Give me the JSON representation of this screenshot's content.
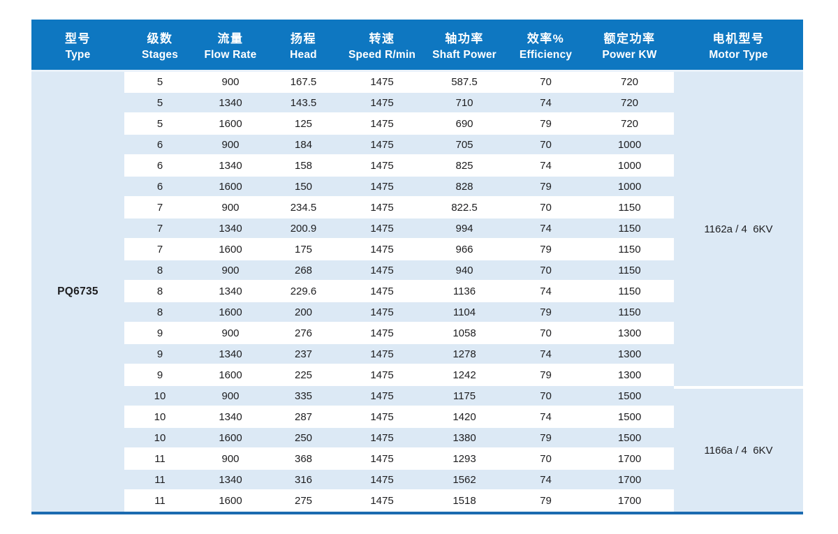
{
  "colors": {
    "header_bg": "#0e77c1",
    "stripe_bg": "#dce9f5",
    "bottom_rule": "#1c6bb0",
    "header_text": "#ffffff",
    "body_text": "#1d1d1f"
  },
  "table": {
    "columns": [
      {
        "zh": "型号",
        "en": "Type"
      },
      {
        "zh": "级数",
        "en": "Stages"
      },
      {
        "zh": "流量",
        "en": "Flow Rate"
      },
      {
        "zh": "扬程",
        "en": "Head"
      },
      {
        "zh": "转速",
        "en": "Speed R/min"
      },
      {
        "zh": "轴功率",
        "en": "Shaft Power"
      },
      {
        "zh": "效率%",
        "en": "Efficiency"
      },
      {
        "zh": "额定功率",
        "en": "Power KW"
      },
      {
        "zh": "电机型号",
        "en": "Motor Type"
      }
    ],
    "type_label": "PQ6735",
    "rows": [
      [
        "5",
        "900",
        "167.5",
        "1475",
        "587.5",
        "70",
        "720"
      ],
      [
        "5",
        "1340",
        "143.5",
        "1475",
        "710",
        "74",
        "720"
      ],
      [
        "5",
        "1600",
        "125",
        "1475",
        "690",
        "79",
        "720"
      ],
      [
        "6",
        "900",
        "184",
        "1475",
        "705",
        "70",
        "1000"
      ],
      [
        "6",
        "1340",
        "158",
        "1475",
        "825",
        "74",
        "1000"
      ],
      [
        "6",
        "1600",
        "150",
        "1475",
        "828",
        "79",
        "1000"
      ],
      [
        "7",
        "900",
        "234.5",
        "1475",
        "822.5",
        "70",
        "1150"
      ],
      [
        "7",
        "1340",
        "200.9",
        "1475",
        "994",
        "74",
        "1150"
      ],
      [
        "7",
        "1600",
        "175",
        "1475",
        "966",
        "79",
        "1150"
      ],
      [
        "8",
        "900",
        "268",
        "1475",
        "940",
        "70",
        "1150"
      ],
      [
        "8",
        "1340",
        "229.6",
        "1475",
        "1136",
        "74",
        "1150"
      ],
      [
        "8",
        "1600",
        "200",
        "1475",
        "1104",
        "79",
        "1150"
      ],
      [
        "9",
        "900",
        "276",
        "1475",
        "1058",
        "70",
        "1300"
      ],
      [
        "9",
        "1340",
        "237",
        "1475",
        "1278",
        "74",
        "1300"
      ],
      [
        "9",
        "1600",
        "225",
        "1475",
        "1242",
        "79",
        "1300"
      ],
      [
        "10",
        "900",
        "335",
        "1475",
        "1175",
        "70",
        "1500"
      ],
      [
        "10",
        "1340",
        "287",
        "1475",
        "1420",
        "74",
        "1500"
      ],
      [
        "10",
        "1600",
        "250",
        "1475",
        "1380",
        "79",
        "1500"
      ],
      [
        "11",
        "900",
        "368",
        "1475",
        "1293",
        "70",
        "1700"
      ],
      [
        "11",
        "1340",
        "316",
        "1475",
        "1562",
        "74",
        "1700"
      ],
      [
        "11",
        "1600",
        "275",
        "1475",
        "1518",
        "79",
        "1700"
      ]
    ],
    "motor_groups": [
      {
        "label": "1162a / 4  6KV",
        "rows": 15
      },
      {
        "label": "1166a / 4  6KV",
        "rows": 6
      }
    ]
  }
}
